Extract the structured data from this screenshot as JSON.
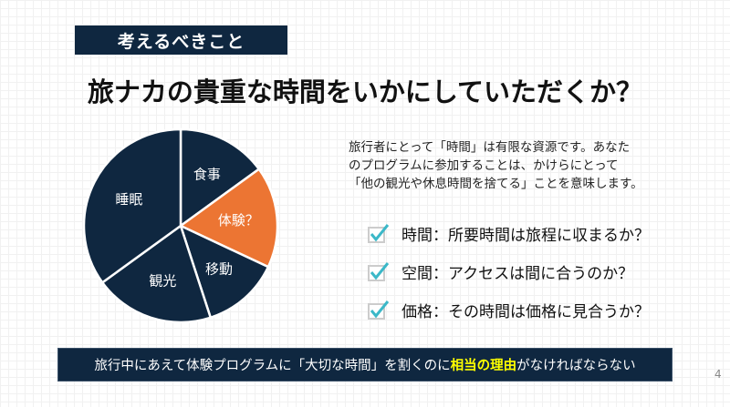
{
  "label": "考えるべきこと",
  "title": "旅ナカの貴重な時間をいかにしていただくか？",
  "chart_data": {
    "type": "pie",
    "start": "top, clockwise",
    "categories": [
      "食事",
      "体験？",
      "移動",
      "観光",
      "睡眠"
    ],
    "values": [
      15,
      17,
      13,
      20,
      35
    ],
    "colors": [
      "#0f2740",
      "#ec7533",
      "#0f2740",
      "#0f2740",
      "#0f2740"
    ],
    "highlight": "体験？"
  },
  "description": [
    "旅行者にとって「時間」は有限な資源です。あなた",
    "のプログラムに参加することは、かけらにとって",
    "「他の観光や休息時間を捨てる」ことを意味します。"
  ],
  "checks": [
    {
      "icon": "checkbox-checked-icon",
      "text": "時間：所要時間は旅程に収まるか？"
    },
    {
      "icon": "checkbox-checked-icon",
      "text": "空間：アクセスは間に合うのか？"
    },
    {
      "icon": "checkbox-checked-icon",
      "text": "価格：その時間は価格に見合うか？"
    }
  ],
  "bottom": {
    "before": "旅行中にあえて体験プログラムに「大切な時間」を割くのに",
    "highlight": "相当の理由",
    "after": "がなければならない",
    "highlight_color": "#ffff00"
  },
  "page_number": "4"
}
